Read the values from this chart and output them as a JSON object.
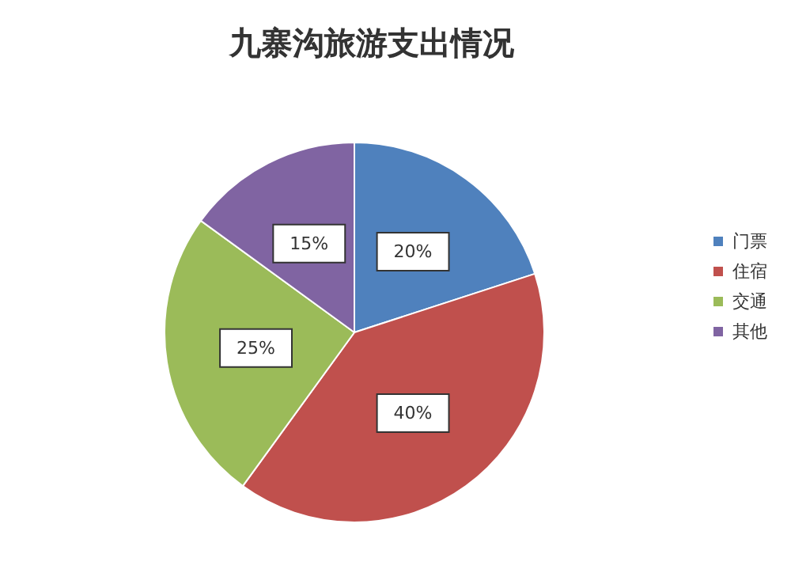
{
  "chart_data": {
    "type": "pie",
    "title": "九寨沟旅游支出情况",
    "categories": [
      "门票",
      "住宿",
      "交通",
      "其他"
    ],
    "values": [
      20,
      40,
      25,
      15
    ],
    "colors": [
      "#4f81bd",
      "#c0504d",
      "#9bbb59",
      "#8064a2"
    ],
    "value_labels": [
      "20%",
      "40%",
      "25%",
      "15%"
    ],
    "legend": "right"
  }
}
